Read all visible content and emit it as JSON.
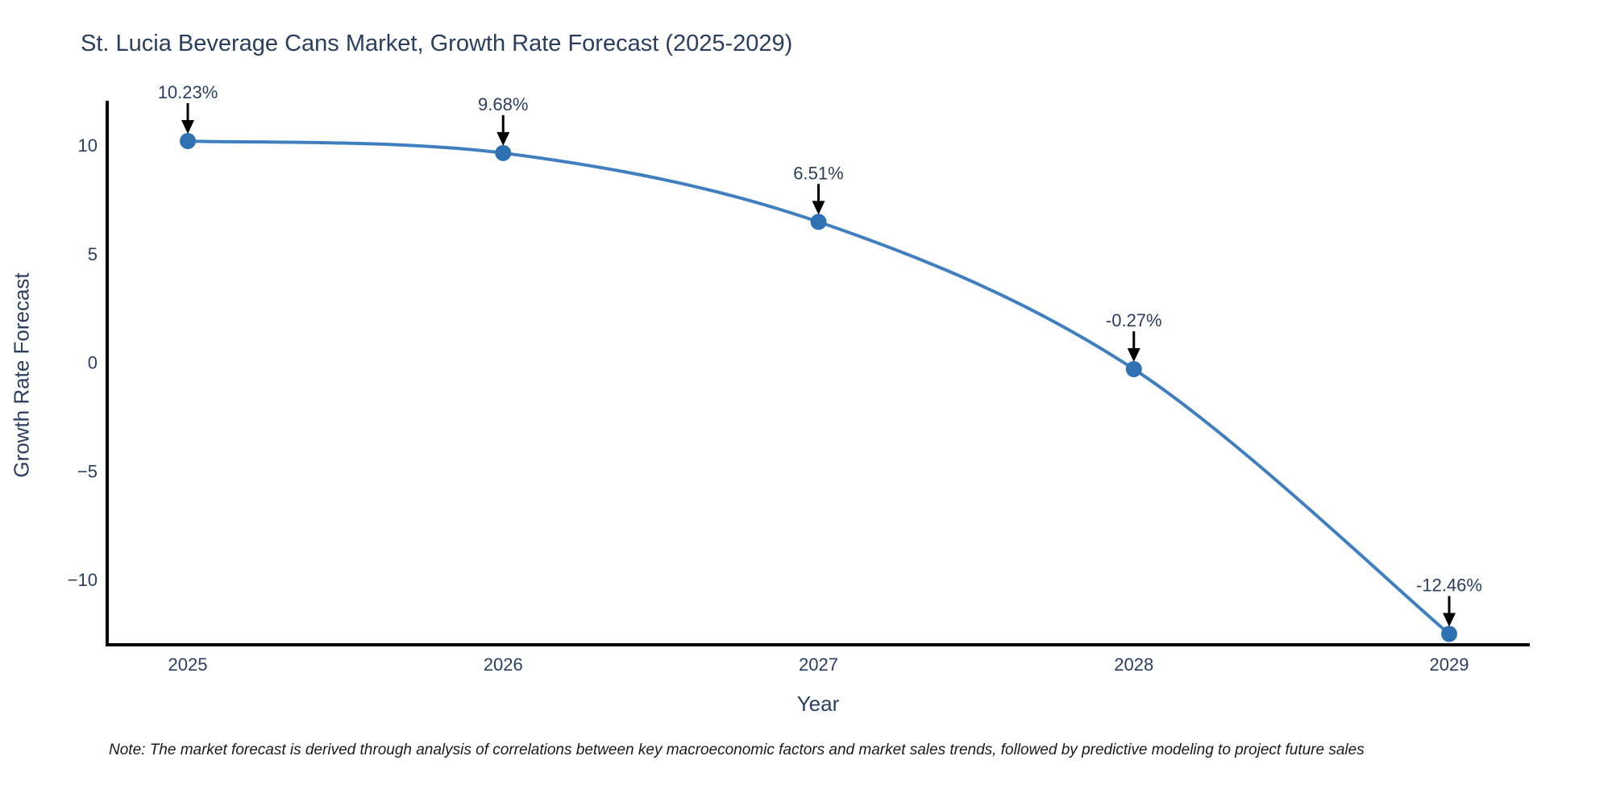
{
  "title": "St. Lucia Beverage Cans Market, Growth Rate Forecast (2025-2029)",
  "footnote": "Note: The market forecast is derived through analysis of correlations between key macroeconomic factors and market sales trends, followed by predictive modeling to project future sales",
  "chart_data": {
    "type": "line",
    "title": "St. Lucia Beverage Cans Market, Growth Rate Forecast (2025-2029)",
    "xlabel": "Year",
    "ylabel": "Growth Rate Forecast",
    "categories": [
      "2025",
      "2026",
      "2027",
      "2028",
      "2029"
    ],
    "values": [
      10.23,
      9.68,
      6.51,
      -0.27,
      -12.46
    ],
    "point_labels": [
      "10.23%",
      "9.68%",
      "6.51%",
      "-0.27%",
      "-12.46%"
    ],
    "yticks": [
      10,
      5,
      0,
      -5,
      -10
    ],
    "ylim": [
      -12.95,
      12.1
    ],
    "grid": false,
    "legend": "none",
    "line_shape": "spline",
    "marker": "circle",
    "annotation_arrows": true,
    "colors": {
      "line": "#3f7fbf",
      "marker": "#2f72b4",
      "axis": "#000000",
      "arrow": "#000000",
      "tick_text": "#2a3f5f",
      "annotation_text": "#2a3f5f",
      "title_text": "#2a3f5f"
    }
  }
}
